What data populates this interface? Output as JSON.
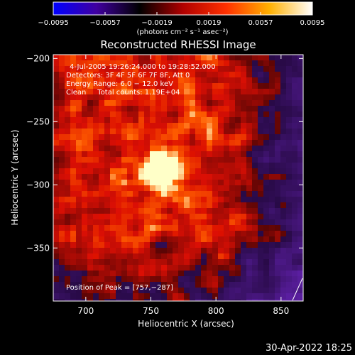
{
  "chart_data": {
    "type": "heatmap",
    "title": "Reconstructed RHESSI Image",
    "xlabel": "Heliocentric X (arcsec)",
    "ylabel": "Heliocentric Y (arcsec)",
    "xlim": [
      675,
      867
    ],
    "ylim": [
      -392,
      -197
    ],
    "x_ticks": [
      700,
      750,
      800,
      850
    ],
    "y_ticks": [
      -200,
      -250,
      -300,
      -350
    ],
    "x_tick_labels": [
      "700",
      "750",
      "800",
      "850"
    ],
    "y_tick_labels": [
      "−200",
      "−250",
      "−300",
      "−350"
    ],
    "colorbar": {
      "min": -0.0095,
      "max": 0.0095,
      "ticks": [
        -0.0095,
        -0.0057,
        -0.0019,
        0.0019,
        0.0057,
        0.0095
      ],
      "tick_labels": [
        "−0.0095",
        "−0.0057",
        "−0.0019",
        "0.0019",
        "0.0057",
        "0.0095"
      ],
      "unit_label": "(photons cm⁻² s⁻¹ asec⁻²)",
      "colors": [
        "#0000ff",
        "#4000a0",
        "#000000",
        "#b00000",
        "#ff3000",
        "#ffb000",
        "#ffffff"
      ]
    },
    "annotations": {
      "time_range": "4-Jul-2005 19:26:24.000 to 19:28:52.000",
      "detectors": "Detectors: 3F 4F 5F 6F 7F 8F, Att 0",
      "energy": "Energy Range: 6.0 − 12.0 keV",
      "algorithm": "Clean     Total counts: 1.19E+04",
      "peak": "Position of Peak = [757,−287]"
    },
    "peak": {
      "x": 757,
      "y": -287
    }
  },
  "footer": {
    "timestamp": "30-Apr-2022 18:25"
  }
}
